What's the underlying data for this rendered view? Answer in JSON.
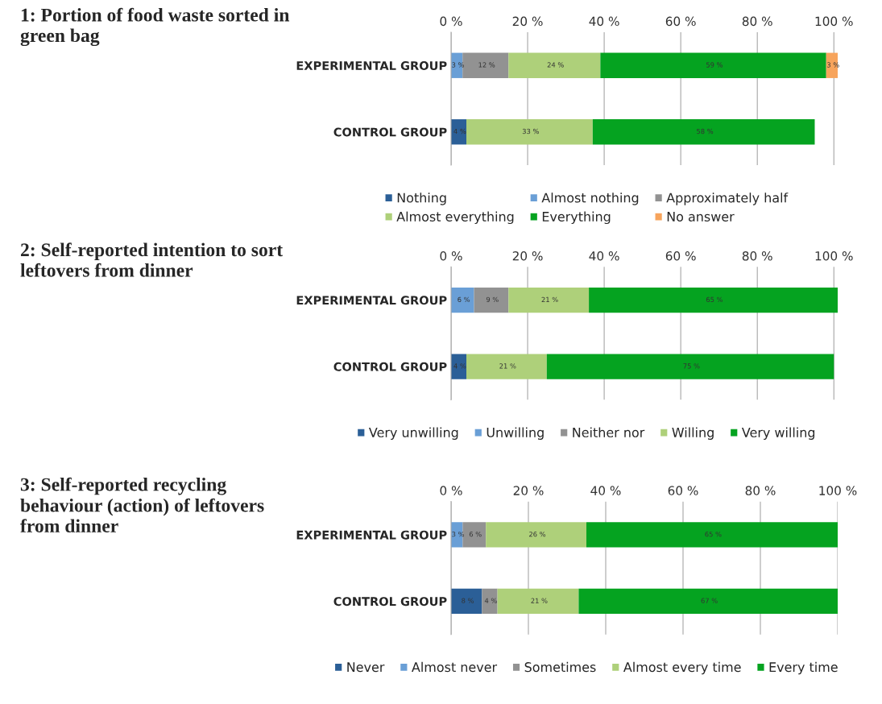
{
  "chart_data": [
    {
      "type": "bar",
      "orientation": "horizontal",
      "stacked": true,
      "title": "1: Portion of food waste sorted in green bag",
      "categories": [
        "EXPERIMENTAL GROUP",
        "CONTROL GROUP"
      ],
      "xlim": [
        0,
        101
      ],
      "xticks": [
        {
          "value": 0,
          "label": "0 %"
        },
        {
          "value": 20,
          "label": "20 %"
        },
        {
          "value": 40,
          "label": "40 %"
        },
        {
          "value": 60,
          "label": "60 %"
        },
        {
          "value": 80,
          "label": "80 %"
        },
        {
          "value": 100,
          "label": "100 %"
        }
      ],
      "grid": "x",
      "legend": "bottom",
      "series": [
        {
          "name": "Nothing",
          "color": "#2b5f97",
          "values": [
            null,
            4
          ],
          "value_labels": [
            null,
            "4 %"
          ]
        },
        {
          "name": "Almost nothing",
          "color": "#6a9fd6",
          "values": [
            3,
            null
          ],
          "value_labels": [
            "3 %",
            null
          ]
        },
        {
          "name": "Approximately half",
          "color": "#929292",
          "values": [
            12,
            null
          ],
          "value_labels": [
            "12 %",
            null
          ]
        },
        {
          "name": "Almost everything",
          "color": "#aed07a",
          "values": [
            24,
            33
          ],
          "value_labels": [
            "24 %",
            "33 %"
          ]
        },
        {
          "name": "Everything",
          "color": "#05a320",
          "values": [
            59,
            58
          ],
          "value_labels": [
            "59 %",
            "58 %"
          ]
        },
        {
          "name": "No answer",
          "color": "#f7a45c",
          "values": [
            3,
            null
          ],
          "value_labels": [
            "3 %",
            null
          ]
        }
      ]
    },
    {
      "type": "bar",
      "orientation": "horizontal",
      "stacked": true,
      "title": "2: Self-reported intention to sort leftovers from dinner",
      "categories": [
        "EXPERIMENTAL GROUP",
        "CONTROL GROUP"
      ],
      "xlim": [
        0,
        101
      ],
      "xticks": [
        {
          "value": 0,
          "label": "0 %"
        },
        {
          "value": 20,
          "label": "20 %"
        },
        {
          "value": 40,
          "label": "40 %"
        },
        {
          "value": 60,
          "label": "60 %"
        },
        {
          "value": 80,
          "label": "80 %"
        },
        {
          "value": 100,
          "label": "100 %"
        }
      ],
      "grid": "x",
      "legend": "bottom",
      "series": [
        {
          "name": "Very unwilling",
          "color": "#2b5f97",
          "values": [
            null,
            4
          ],
          "value_labels": [
            null,
            "4 %"
          ]
        },
        {
          "name": "Unwilling",
          "color": "#6a9fd6",
          "values": [
            6,
            null
          ],
          "value_labels": [
            "6 %",
            null
          ]
        },
        {
          "name": "Neither nor",
          "color": "#929292",
          "values": [
            9,
            null
          ],
          "value_labels": [
            "9 %",
            null
          ]
        },
        {
          "name": "Willing",
          "color": "#aed07a",
          "values": [
            21,
            21
          ],
          "value_labels": [
            "21 %",
            "21 %"
          ]
        },
        {
          "name": "Very willing",
          "color": "#05a320",
          "values": [
            65,
            75
          ],
          "value_labels": [
            "65 %",
            "75 %"
          ]
        }
      ]
    },
    {
      "type": "bar",
      "orientation": "horizontal",
      "stacked": true,
      "title": "3: Self-reported recycling behaviour (action) of leftovers from dinner",
      "categories": [
        "EXPERIMENTAL GROUP",
        "CONTROL GROUP"
      ],
      "xlim": [
        0,
        100
      ],
      "xticks": [
        {
          "value": 0,
          "label": "0 %"
        },
        {
          "value": 20,
          "label": "20 %"
        },
        {
          "value": 40,
          "label": "40 %"
        },
        {
          "value": 60,
          "label": "60 %"
        },
        {
          "value": 80,
          "label": "80 %"
        },
        {
          "value": 100,
          "label": "100 %"
        }
      ],
      "grid": "x",
      "legend": "bottom",
      "series": [
        {
          "name": "Never",
          "color": "#2b5f97",
          "values": [
            null,
            8
          ],
          "value_labels": [
            null,
            "8 %"
          ]
        },
        {
          "name": "Almost never",
          "color": "#6a9fd6",
          "values": [
            3,
            null
          ],
          "value_labels": [
            "3 %",
            null
          ]
        },
        {
          "name": "Sometimes",
          "color": "#929292",
          "values": [
            6,
            4
          ],
          "value_labels": [
            "6 %",
            "4 %"
          ]
        },
        {
          "name": "Almost every time",
          "color": "#aed07a",
          "values": [
            26,
            21
          ],
          "value_labels": [
            "26 %",
            "21 %"
          ]
        },
        {
          "name": "Every time",
          "color": "#05a320",
          "values": [
            65,
            67
          ],
          "value_labels": [
            "65 %",
            "67 %"
          ]
        }
      ]
    }
  ]
}
